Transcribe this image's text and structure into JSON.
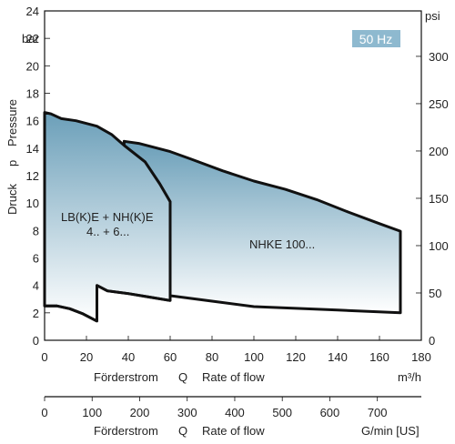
{
  "badge": "50 Hz",
  "chart_data": {
    "type": "area",
    "left_axis": {
      "title_de": "Druck",
      "symbol": "p",
      "title_en": "Pressure",
      "unit": "bar",
      "ylim": [
        0,
        24
      ],
      "ticks": [
        0,
        2,
        4,
        6,
        8,
        10,
        12,
        14,
        16,
        18,
        20,
        22,
        24
      ]
    },
    "right_axis": {
      "unit": "psi",
      "ylim": [
        0,
        348
      ],
      "ticks": [
        0,
        50,
        100,
        150,
        200,
        250,
        300
      ]
    },
    "x_axis": {
      "label_de": "Förderstrom",
      "symbol": "Q",
      "label_en": "Rate of flow",
      "unit": "m³/h",
      "xlim": [
        0,
        180
      ],
      "ticks": [
        0,
        20,
        40,
        60,
        80,
        100,
        120,
        140,
        160,
        180
      ]
    },
    "x2_axis": {
      "label_de": "Förderstrom",
      "symbol": "Q",
      "label_en": "Rate of flow",
      "unit": "G/min [US]",
      "xlim": [
        0,
        792.5
      ],
      "ticks": [
        0,
        100,
        200,
        300,
        400,
        500,
        600,
        700
      ]
    },
    "series": [
      {
        "name_line1": "LB(K)E + NH(K)E",
        "name_line2": "4.. + 6...",
        "upper": [
          [
            0,
            16.6
          ],
          [
            3,
            16.5
          ],
          [
            8,
            16.15
          ],
          [
            15,
            16.0
          ],
          [
            25,
            15.6
          ],
          [
            32,
            15.0
          ],
          [
            38,
            14.2
          ],
          [
            48,
            13.0
          ],
          [
            55,
            11.4
          ],
          [
            60,
            10.1
          ]
        ],
        "lower_segment_1": [
          [
            0,
            2.5
          ],
          [
            6,
            2.5
          ],
          [
            12,
            2.3
          ],
          [
            18,
            1.95
          ],
          [
            25,
            1.4
          ]
        ],
        "lower_segment_2": [
          [
            25,
            4.0
          ],
          [
            30,
            3.6
          ],
          [
            40,
            3.4
          ],
          [
            50,
            3.15
          ],
          [
            60,
            2.9
          ]
        ]
      },
      {
        "name": "NHKE 100...",
        "upper": [
          [
            38,
            14.5
          ],
          [
            45,
            14.35
          ],
          [
            60,
            13.75
          ],
          [
            70,
            13.2
          ],
          [
            85,
            12.35
          ],
          [
            100,
            11.6
          ],
          [
            115,
            11.0
          ],
          [
            130,
            10.25
          ],
          [
            145,
            9.35
          ],
          [
            160,
            8.5
          ],
          [
            170,
            7.95
          ]
        ],
        "lower": [
          [
            60,
            3.25
          ],
          [
            80,
            2.85
          ],
          [
            100,
            2.45
          ],
          [
            140,
            2.2
          ],
          [
            170,
            2.0
          ]
        ]
      }
    ]
  }
}
